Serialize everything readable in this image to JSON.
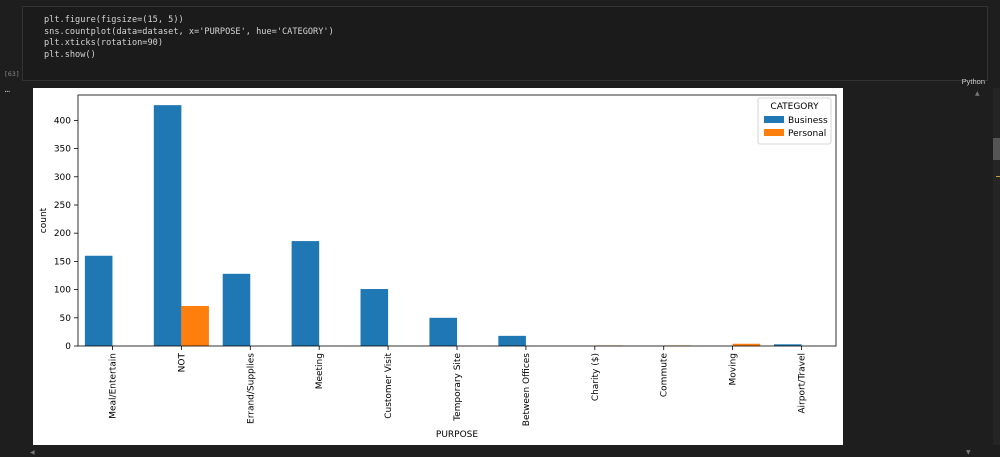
{
  "cell": {
    "execution_count": "[63]",
    "language": "Python",
    "code_lines": [
      "plt.figure(figsize=(15, 5))",
      "sns.countplot(data=dataset, x='PURPOSE', hue='CATEGORY')",
      "plt.xticks(rotation=90)",
      "plt.show()"
    ],
    "more_actions": "..."
  },
  "chart_data": {
    "type": "bar",
    "categories": [
      "Meal/Entertain",
      "NOT",
      "Errand/Supplies",
      "Meeting",
      "Customer Visit",
      "Temporary Site",
      "Between Offices",
      "Charity ($)",
      "Commute",
      "Moving",
      "Airport/Travel"
    ],
    "series": [
      {
        "name": "Business",
        "color": "#1f77b4",
        "values": [
          160,
          427,
          128,
          186,
          101,
          50,
          18,
          0,
          0,
          0,
          3
        ]
      },
      {
        "name": "Personal",
        "color": "#ff7f0e",
        "values": [
          0,
          71,
          0,
          0,
          0,
          0,
          0,
          1,
          1,
          4,
          0
        ]
      }
    ],
    "xlabel": "PURPOSE",
    "ylabel": "count",
    "ylim": [
      0,
      445
    ],
    "yticks": [
      0,
      50,
      100,
      150,
      200,
      250,
      300,
      350,
      400
    ],
    "legend": {
      "title": "CATEGORY",
      "placement": "top-right"
    },
    "grid": false,
    "xtick_rotation": 90
  }
}
